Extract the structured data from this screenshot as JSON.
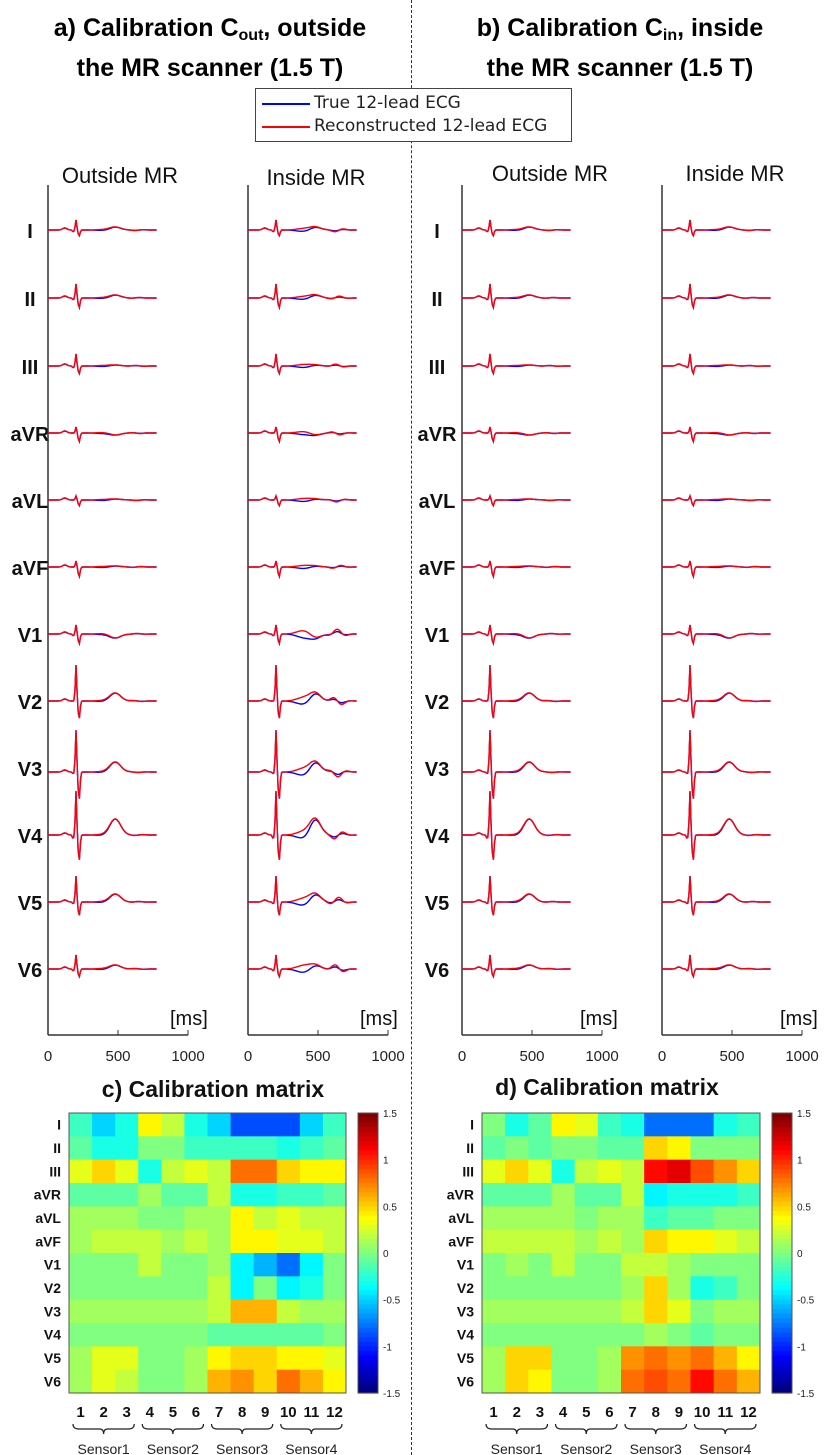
{
  "panel_titles": {
    "a": {
      "main": "a) Calibration C",
      "sub": "out",
      "rest": ", outside",
      "line2": "the MR scanner (1.5 T)"
    },
    "b": {
      "main": "b) Calibration C",
      "sub": "in",
      "rest": ", inside",
      "line2": "the MR scanner (1.5 T)"
    }
  },
  "legend": [
    {
      "label": "True 12-lead ECG",
      "color": "#0000ff"
    },
    {
      "label": "Reconstructed 12-lead ECG",
      "color": "#ff0000"
    }
  ],
  "chart_data": [
    {
      "type": "line",
      "panel": "a",
      "columns": [
        "Outside MR",
        "Inside MR"
      ],
      "leads": [
        "I",
        "II",
        "III",
        "aVR",
        "aVL",
        "aVF",
        "V1",
        "V2",
        "V3",
        "V4",
        "V5",
        "V6"
      ],
      "xlabel": "[ms]",
      "xlim": [
        0,
        1000
      ],
      "xticks": [
        0,
        500,
        1000
      ],
      "series": [
        {
          "name": "True 12-lead ECG",
          "color": "#0000ff"
        },
        {
          "name": "Reconstructed 12-lead ECG",
          "color": "#ff0000"
        }
      ]
    },
    {
      "type": "line",
      "panel": "b",
      "columns": [
        "Outside MR",
        "Inside MR"
      ],
      "leads": [
        "I",
        "II",
        "III",
        "aVR",
        "aVL",
        "aVF",
        "V1",
        "V2",
        "V3",
        "V4",
        "V5",
        "V6"
      ],
      "xlabel": "[ms]",
      "xlim": [
        0,
        1000
      ],
      "xticks": [
        0,
        500,
        1000
      ],
      "series": [
        {
          "name": "True 12-lead ECG",
          "color": "#0000ff"
        },
        {
          "name": "Reconstructed 12-lead ECG",
          "color": "#ff0000"
        }
      ]
    },
    {
      "type": "heatmap",
      "panel": "c",
      "title": "c) Calibration matrix",
      "rows": [
        "I",
        "II",
        "III",
        "aVR",
        "aVL",
        "aVF",
        "V1",
        "V2",
        "V3",
        "V4",
        "V5",
        "V6"
      ],
      "columns": [
        "1",
        "2",
        "3",
        "4",
        "5",
        "6",
        "7",
        "8",
        "9",
        "10",
        "11",
        "12"
      ],
      "column_groups": [
        "Sensor1",
        "Sensor2",
        "Sensor3",
        "Sensor4"
      ],
      "colorbar": {
        "min": -1.5,
        "max": 1.5,
        "ticks": [
          "1.5",
          "1",
          "0.5",
          "0",
          "-0.5",
          "-1",
          "-1.5"
        ],
        "colormap": "jet"
      },
      "values": [
        [
          -0.2,
          -0.5,
          -0.3,
          0.4,
          0.2,
          -0.3,
          -0.5,
          -0.9,
          -0.9,
          -0.9,
          -0.5,
          -0.2
        ],
        [
          -0.1,
          -0.3,
          -0.3,
          0.0,
          0.0,
          -0.2,
          -0.2,
          -0.2,
          -0.2,
          -0.3,
          -0.2,
          -0.1
        ],
        [
          0.3,
          0.5,
          0.3,
          -0.3,
          0.2,
          0.3,
          0.2,
          0.8,
          0.8,
          0.5,
          0.4,
          0.4
        ],
        [
          -0.1,
          -0.1,
          -0.1,
          0.1,
          -0.1,
          -0.1,
          0.2,
          -0.3,
          -0.3,
          -0.2,
          -0.2,
          -0.1
        ],
        [
          0.1,
          0.1,
          0.1,
          0.0,
          0.0,
          0.1,
          0.1,
          0.4,
          0.2,
          0.3,
          0.2,
          0.2
        ],
        [
          0.1,
          0.2,
          0.2,
          0.2,
          0.1,
          0.2,
          0.1,
          0.4,
          0.4,
          0.3,
          0.3,
          0.2
        ],
        [
          0.0,
          0.0,
          0.0,
          0.2,
          0.0,
          0.0,
          0.1,
          -0.4,
          -0.6,
          -0.8,
          -0.4,
          0.0
        ],
        [
          0.0,
          0.0,
          0.0,
          0.0,
          0.0,
          0.0,
          0.2,
          -0.4,
          0.0,
          -0.4,
          -0.3,
          0.0
        ],
        [
          0.1,
          0.1,
          0.1,
          0.1,
          0.1,
          0.1,
          0.2,
          0.6,
          0.6,
          0.2,
          0.1,
          0.1
        ],
        [
          0.0,
          0.0,
          0.0,
          0.0,
          0.0,
          0.0,
          -0.1,
          -0.1,
          -0.1,
          -0.1,
          -0.1,
          0.0
        ],
        [
          0.1,
          0.3,
          0.3,
          0.0,
          0.0,
          0.1,
          0.4,
          0.5,
          0.5,
          0.4,
          0.4,
          0.3
        ],
        [
          0.1,
          0.3,
          0.2,
          0.0,
          0.0,
          0.1,
          0.6,
          0.7,
          0.5,
          0.8,
          0.6,
          0.4
        ]
      ]
    },
    {
      "type": "heatmap",
      "panel": "d",
      "title": "d) Calibration matrix",
      "rows": [
        "I",
        "II",
        "III",
        "aVR",
        "aVL",
        "aVF",
        "V1",
        "V2",
        "V3",
        "V4",
        "V5",
        "V6"
      ],
      "columns": [
        "1",
        "2",
        "3",
        "4",
        "5",
        "6",
        "7",
        "8",
        "9",
        "10",
        "11",
        "12"
      ],
      "column_groups": [
        "Sensor1",
        "Sensor2",
        "Sensor3",
        "Sensor4"
      ],
      "colorbar": {
        "min": -1.5,
        "max": 1.5,
        "ticks": [
          "1.5",
          "1",
          "0.5",
          "0",
          "-0.5",
          "-1",
          "-1.5"
        ],
        "colormap": "jet"
      },
      "values": [
        [
          0.0,
          -0.3,
          -0.1,
          0.4,
          0.3,
          -0.2,
          -0.3,
          -0.8,
          -0.8,
          -0.8,
          -0.3,
          -0.2
        ],
        [
          -0.1,
          0.0,
          -0.1,
          0.0,
          0.0,
          -0.1,
          -0.1,
          0.5,
          0.4,
          0.0,
          0.0,
          0.0
        ],
        [
          0.3,
          0.5,
          0.3,
          -0.3,
          0.2,
          0.3,
          0.2,
          1.1,
          1.2,
          0.9,
          0.7,
          0.5
        ],
        [
          -0.1,
          -0.1,
          -0.1,
          0.1,
          -0.1,
          -0.1,
          0.2,
          -0.4,
          -0.3,
          -0.3,
          -0.3,
          -0.2
        ],
        [
          0.1,
          0.1,
          0.1,
          0.1,
          0.0,
          0.1,
          0.1,
          -0.2,
          -0.1,
          -0.1,
          0.0,
          0.0
        ],
        [
          0.2,
          0.2,
          0.2,
          0.2,
          0.1,
          0.2,
          0.1,
          0.5,
          0.4,
          0.4,
          0.3,
          0.2
        ],
        [
          0.0,
          0.1,
          0.0,
          0.2,
          0.0,
          0.0,
          0.2,
          0.2,
          0.1,
          0.0,
          0.0,
          0.0
        ],
        [
          0.0,
          0.0,
          0.0,
          0.0,
          0.0,
          0.0,
          0.1,
          0.5,
          0.1,
          -0.3,
          -0.2,
          0.0
        ],
        [
          0.1,
          0.1,
          0.1,
          0.1,
          0.1,
          0.1,
          0.2,
          0.5,
          0.3,
          0.0,
          0.1,
          0.1
        ],
        [
          0.0,
          0.0,
          0.0,
          0.0,
          0.0,
          0.0,
          0.0,
          0.1,
          0.0,
          -0.1,
          0.0,
          0.0
        ],
        [
          0.1,
          0.5,
          0.5,
          0.0,
          0.0,
          0.1,
          0.7,
          0.8,
          0.7,
          0.8,
          0.6,
          0.4
        ],
        [
          0.1,
          0.5,
          0.4,
          0.0,
          0.0,
          0.1,
          0.8,
          0.9,
          0.8,
          1.1,
          0.8,
          0.6
        ]
      ]
    }
  ]
}
